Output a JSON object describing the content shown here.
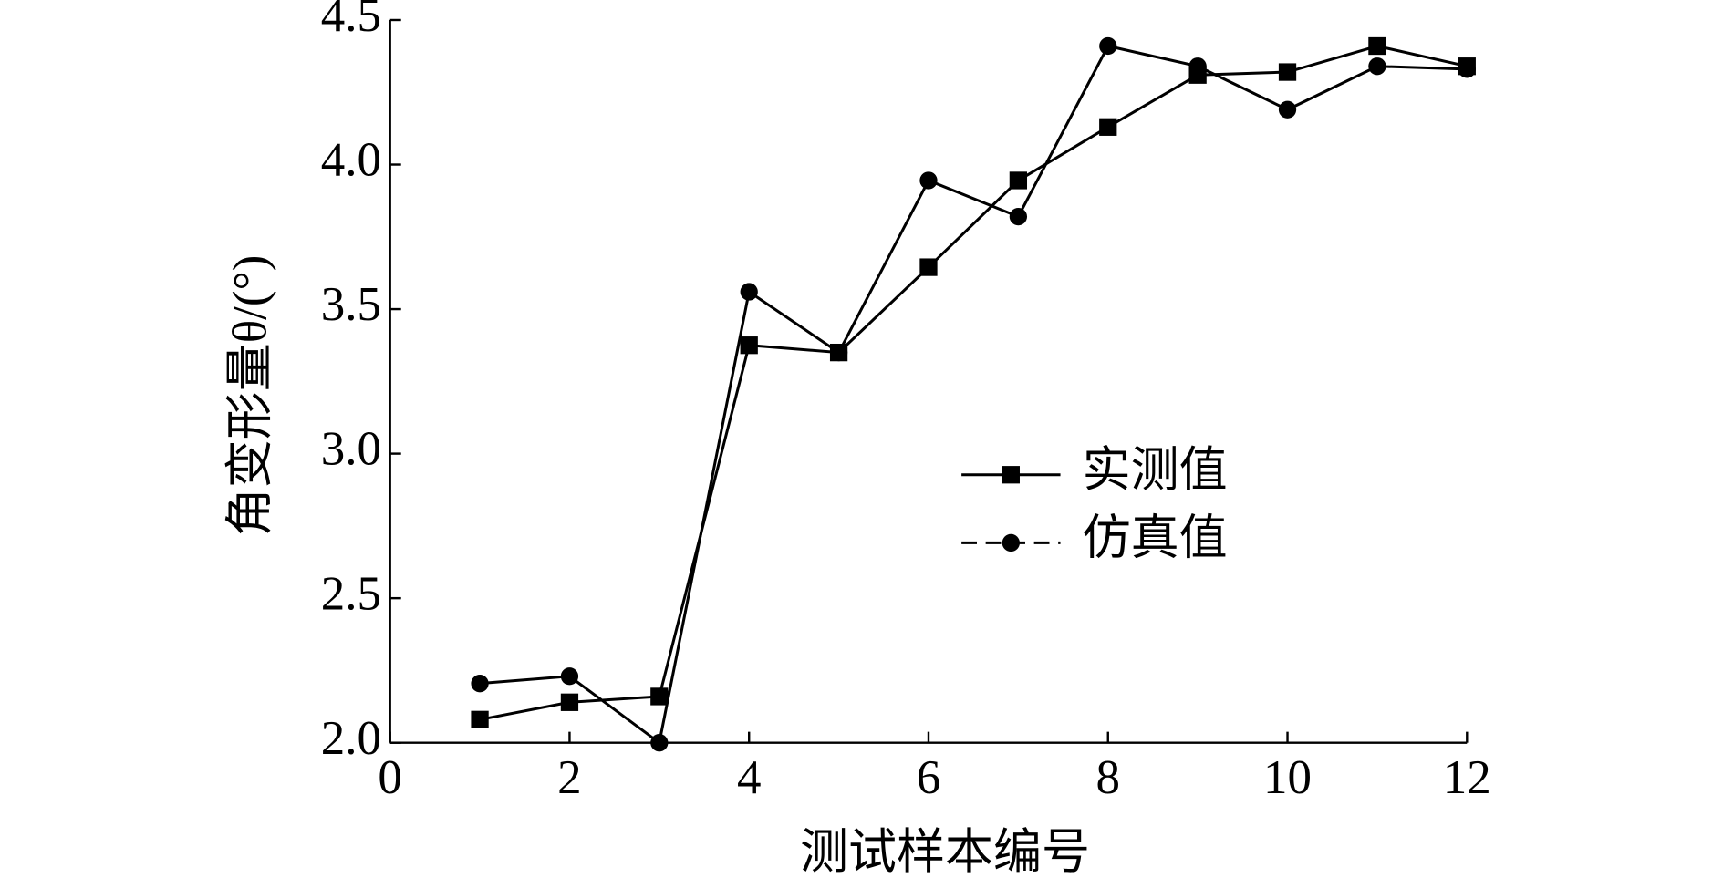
{
  "chart_data": {
    "type": "line",
    "xlabel": "测试样本编号",
    "ylabel": "角变形量θ/(°)",
    "x": [
      1,
      2,
      3,
      4,
      5,
      6,
      7,
      8,
      9,
      10,
      11,
      12
    ],
    "series": [
      {
        "name": "实测值",
        "color": "#000000",
        "marker": "square",
        "values": [
          2.08,
          2.14,
          2.16,
          3.375,
          3.35,
          3.645,
          3.945,
          4.13,
          4.31,
          4.32,
          4.41,
          4.34
        ]
      },
      {
        "name": "仿真值",
        "color": "#000000",
        "marker": "circle",
        "values": [
          2.205,
          2.23,
          2.0,
          3.56,
          3.35,
          3.945,
          3.82,
          4.41,
          4.34,
          4.19,
          4.34,
          4.33
        ]
      }
    ],
    "xlim": [
      0,
      12
    ],
    "xticks": [
      0,
      2,
      4,
      6,
      8,
      10,
      12
    ],
    "ylim": [
      2.0,
      4.5
    ],
    "yticks": [
      {
        "value": 2.0,
        "label": "2.0"
      },
      {
        "value": 2.5,
        "label": "2.5"
      },
      {
        "value": 3.0,
        "label": "3.0"
      },
      {
        "value": 3.5,
        "label": "3.5"
      },
      {
        "value": 4.0,
        "label": "4.0"
      },
      {
        "value": 4.5,
        "label": "4.5"
      }
    ]
  }
}
